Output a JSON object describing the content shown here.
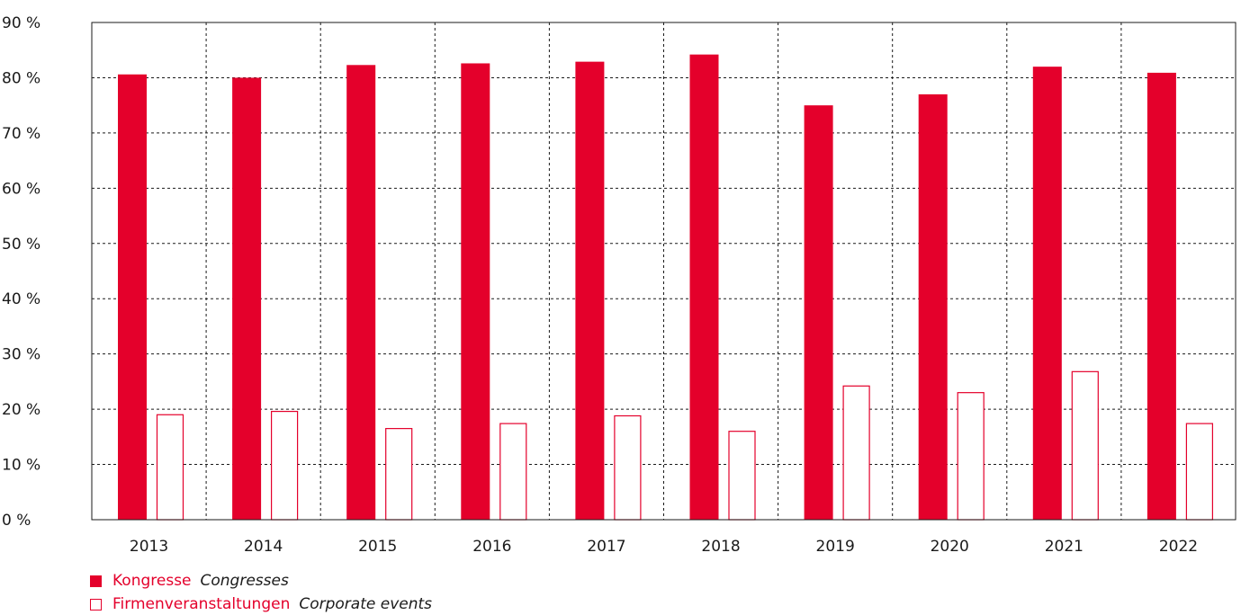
{
  "chart_data": {
    "type": "bar",
    "categories": [
      "2013",
      "2014",
      "2015",
      "2016",
      "2017",
      "2018",
      "2019",
      "2020",
      "2021",
      "2022"
    ],
    "series": [
      {
        "name": "Kongresse",
        "name_en": "Congresses",
        "style": "filled",
        "values": [
          80.6,
          80.0,
          82.3,
          82.6,
          82.9,
          84.2,
          75.0,
          77.0,
          82.0,
          80.9
        ]
      },
      {
        "name": "Firmenveranstaltungen",
        "name_en": "Corporate events",
        "style": "outline",
        "values": [
          19.0,
          19.6,
          16.5,
          17.4,
          18.8,
          16.0,
          24.2,
          23.0,
          26.8,
          17.4
        ]
      }
    ],
    "y_ticks": [
      "0 %",
      "10 %",
      "20 %",
      "30 %",
      "40 %",
      "50 %",
      "60 %",
      "70 %",
      "80 %",
      "90 %"
    ],
    "ylim": [
      0,
      90
    ],
    "grid": "dashed",
    "legend_position": "bottom-left",
    "colors": {
      "accent": "#e4002b",
      "grid": "#1a1a1a",
      "text": "#1a1a1a"
    }
  },
  "legend": {
    "items": [
      {
        "label_de": "Kongresse",
        "label_en": "Congresses"
      },
      {
        "label_de": "Firmenveranstaltungen",
        "label_en": "Corporate events"
      }
    ]
  }
}
